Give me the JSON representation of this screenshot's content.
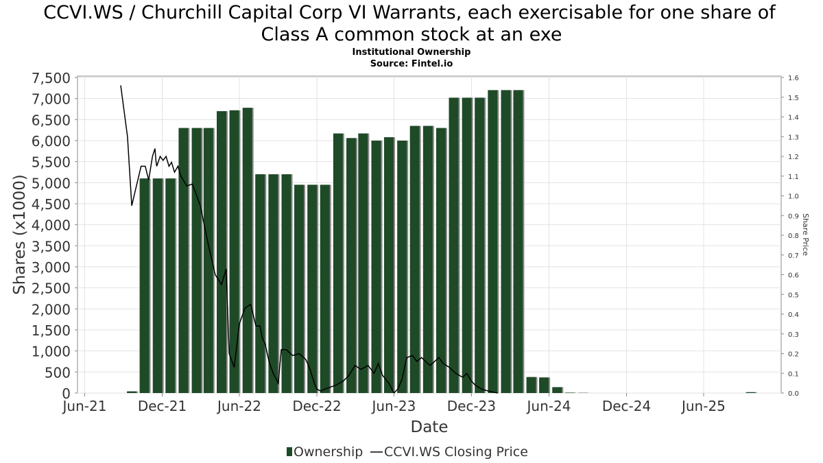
{
  "chart_data": {
    "type": "bar",
    "title_line1": "CCVI.WS / Churchill Capital Corp VI Warrants, each exercisable for one share of",
    "title_line2": "Class A common stock at an exe",
    "subtitle1": "Institutional Ownership",
    "subtitle2": "Source: Fintel.io",
    "xlabel": "Date",
    "ylabel": "Shares (x1000)",
    "y2label": "Share Price",
    "x_ticks": [
      "Jun-21",
      "Dec-21",
      "Jun-22",
      "Dec-22",
      "Jun-23",
      "Dec-23",
      "Jun-24",
      "Dec-24",
      "Jun-25"
    ],
    "y_ticks": [
      "0",
      "500",
      "1,000",
      "1,500",
      "2,000",
      "2,500",
      "3,000",
      "3,500",
      "4,000",
      "4,500",
      "5,000",
      "5,500",
      "6,000",
      "6,500",
      "7,000",
      "7,500"
    ],
    "y2_ticks": [
      "0.0",
      "0.1",
      "0.2",
      "0.3",
      "0.4",
      "0.5",
      "0.6",
      "0.7",
      "0.8",
      "0.9",
      "1.0",
      "1.1",
      "1.2",
      "1.3",
      "1.4",
      "1.5",
      "1.6"
    ],
    "ylim": [
      0,
      7500
    ],
    "y2lim": [
      0,
      1.6
    ],
    "legend_position": "bottom",
    "grid": true,
    "series": [
      {
        "name": "Ownership",
        "color": "#1f4a27",
        "points": [
          {
            "date": "2021-09-20",
            "value": 40
          },
          {
            "date": "2021-10-20",
            "value": 5100
          },
          {
            "date": "2021-11-20",
            "value": 5100
          },
          {
            "date": "2021-12-20",
            "value": 5100
          },
          {
            "date": "2022-01-20",
            "value": 6300
          },
          {
            "date": "2022-02-20",
            "value": 6300
          },
          {
            "date": "2022-03-20",
            "value": 6300
          },
          {
            "date": "2022-04-20",
            "value": 6700
          },
          {
            "date": "2022-05-20",
            "value": 6720
          },
          {
            "date": "2022-06-20",
            "value": 6780
          },
          {
            "date": "2022-07-20",
            "value": 5200
          },
          {
            "date": "2022-08-20",
            "value": 5200
          },
          {
            "date": "2022-09-20",
            "value": 5200
          },
          {
            "date": "2022-10-20",
            "value": 4950
          },
          {
            "date": "2022-11-20",
            "value": 4950
          },
          {
            "date": "2022-12-20",
            "value": 4950
          },
          {
            "date": "2023-01-20",
            "value": 6170
          },
          {
            "date": "2023-02-20",
            "value": 6060
          },
          {
            "date": "2023-03-20",
            "value": 6170
          },
          {
            "date": "2023-04-20",
            "value": 6000
          },
          {
            "date": "2023-05-20",
            "value": 6080
          },
          {
            "date": "2023-06-20",
            "value": 6000
          },
          {
            "date": "2023-07-20",
            "value": 6350
          },
          {
            "date": "2023-08-20",
            "value": 6350
          },
          {
            "date": "2023-09-20",
            "value": 6300
          },
          {
            "date": "2023-10-20",
            "value": 7020
          },
          {
            "date": "2023-11-20",
            "value": 7020
          },
          {
            "date": "2023-12-20",
            "value": 7020
          },
          {
            "date": "2024-01-20",
            "value": 7200
          },
          {
            "date": "2024-02-20",
            "value": 7200
          },
          {
            "date": "2024-03-20",
            "value": 7200
          },
          {
            "date": "2024-04-20",
            "value": 380
          },
          {
            "date": "2024-05-20",
            "value": 370
          },
          {
            "date": "2024-06-20",
            "value": 140
          },
          {
            "date": "2024-07-20",
            "value": 10
          },
          {
            "date": "2024-08-20",
            "value": 5
          },
          {
            "date": "2025-09-20",
            "value": 20
          }
        ]
      },
      {
        "name": "CCVI.WS Closing Price",
        "color": "#000000",
        "axis": "right",
        "points": [
          {
            "date": "2021-08-25",
            "value": 1.56
          },
          {
            "date": "2021-09-10",
            "value": 1.3
          },
          {
            "date": "2021-09-20",
            "value": 0.95
          },
          {
            "date": "2021-10-01",
            "value": 1.05
          },
          {
            "date": "2021-10-12",
            "value": 1.15
          },
          {
            "date": "2021-10-22",
            "value": 1.15
          },
          {
            "date": "2021-10-30",
            "value": 1.08
          },
          {
            "date": "2021-11-08",
            "value": 1.2
          },
          {
            "date": "2021-11-14",
            "value": 1.24
          },
          {
            "date": "2021-11-16",
            "value": 1.18
          },
          {
            "date": "2021-11-18",
            "value": 1.15
          },
          {
            "date": "2021-11-26",
            "value": 1.2
          },
          {
            "date": "2021-12-03",
            "value": 1.18
          },
          {
            "date": "2021-12-10",
            "value": 1.2
          },
          {
            "date": "2021-12-17",
            "value": 1.15
          },
          {
            "date": "2021-12-23",
            "value": 1.17
          },
          {
            "date": "2021-12-30",
            "value": 1.12
          },
          {
            "date": "2022-01-07",
            "value": 1.15
          },
          {
            "date": "2022-01-14",
            "value": 1.1
          },
          {
            "date": "2022-01-28",
            "value": 1.05
          },
          {
            "date": "2022-02-10",
            "value": 1.06
          },
          {
            "date": "2022-03-01",
            "value": 0.95
          },
          {
            "date": "2022-03-20",
            "value": 0.75
          },
          {
            "date": "2022-04-05",
            "value": 0.6
          },
          {
            "date": "2022-04-20",
            "value": 0.55
          },
          {
            "date": "2022-05-01",
            "value": 0.63
          },
          {
            "date": "2022-05-08",
            "value": 0.2
          },
          {
            "date": "2022-05-20",
            "value": 0.13
          },
          {
            "date": "2022-06-01",
            "value": 0.35
          },
          {
            "date": "2022-06-14",
            "value": 0.43
          },
          {
            "date": "2022-06-28",
            "value": 0.45
          },
          {
            "date": "2022-07-10",
            "value": 0.34
          },
          {
            "date": "2022-07-20",
            "value": 0.34
          },
          {
            "date": "2022-07-25",
            "value": 0.28
          },
          {
            "date": "2022-08-01",
            "value": 0.25
          },
          {
            "date": "2022-08-10",
            "value": 0.16
          },
          {
            "date": "2022-08-20",
            "value": 0.1
          },
          {
            "date": "2022-09-01",
            "value": 0.05
          },
          {
            "date": "2022-09-08",
            "value": 0.22
          },
          {
            "date": "2022-09-20",
            "value": 0.22
          },
          {
            "date": "2022-10-05",
            "value": 0.19
          },
          {
            "date": "2022-10-20",
            "value": 0.2
          },
          {
            "date": "2022-11-05",
            "value": 0.17
          },
          {
            "date": "2022-11-15",
            "value": 0.12
          },
          {
            "date": "2022-11-25",
            "value": 0.05
          },
          {
            "date": "2022-12-01",
            "value": 0.02
          },
          {
            "date": "2022-12-10",
            "value": 0.01
          },
          {
            "date": "2022-12-20",
            "value": 0.02
          },
          {
            "date": "2023-01-15",
            "value": 0.04
          },
          {
            "date": "2023-02-01",
            "value": 0.06
          },
          {
            "date": "2023-02-15",
            "value": 0.09
          },
          {
            "date": "2023-03-01",
            "value": 0.14
          },
          {
            "date": "2023-03-15",
            "value": 0.12
          },
          {
            "date": "2023-04-01",
            "value": 0.14
          },
          {
            "date": "2023-04-15",
            "value": 0.1
          },
          {
            "date": "2023-04-25",
            "value": 0.15
          },
          {
            "date": "2023-05-05",
            "value": 0.09
          },
          {
            "date": "2023-05-20",
            "value": 0.05
          },
          {
            "date": "2023-06-01",
            "value": 0.0
          },
          {
            "date": "2023-06-10",
            "value": 0.02
          },
          {
            "date": "2023-06-20",
            "value": 0.07
          },
          {
            "date": "2023-07-01",
            "value": 0.18
          },
          {
            "date": "2023-07-15",
            "value": 0.19
          },
          {
            "date": "2023-07-25",
            "value": 0.16
          },
          {
            "date": "2023-08-05",
            "value": 0.18
          },
          {
            "date": "2023-08-15",
            "value": 0.16
          },
          {
            "date": "2023-08-25",
            "value": 0.14
          },
          {
            "date": "2023-09-05",
            "value": 0.16
          },
          {
            "date": "2023-09-15",
            "value": 0.18
          },
          {
            "date": "2023-09-25",
            "value": 0.15
          },
          {
            "date": "2023-10-10",
            "value": 0.13
          },
          {
            "date": "2023-10-25",
            "value": 0.1
          },
          {
            "date": "2023-11-10",
            "value": 0.08
          },
          {
            "date": "2023-11-20",
            "value": 0.1
          },
          {
            "date": "2023-12-01",
            "value": 0.06
          },
          {
            "date": "2023-12-10",
            "value": 0.04
          },
          {
            "date": "2023-12-25",
            "value": 0.02
          },
          {
            "date": "2024-01-10",
            "value": 0.01
          },
          {
            "date": "2024-02-01",
            "value": 0.0
          }
        ]
      }
    ]
  }
}
